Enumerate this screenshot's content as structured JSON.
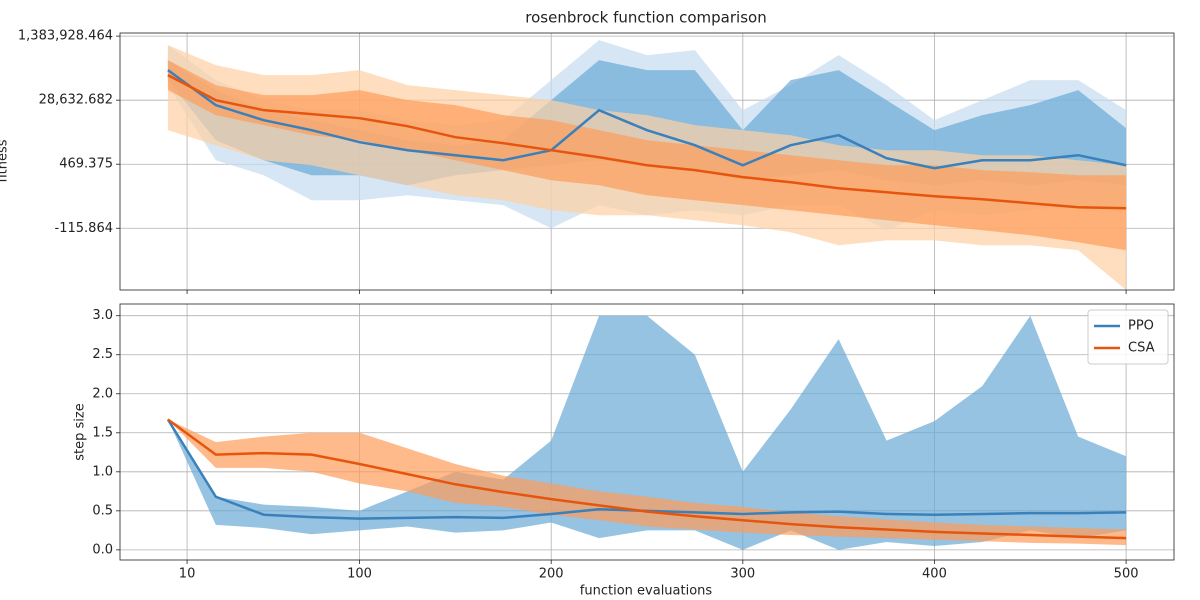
{
  "chart_data": [
    {
      "type": "line",
      "title": "rosenbrock function comparison",
      "ylabel": "fitness",
      "yscale": "tick-interpolated",
      "grid": true,
      "show_xtick_labels": false,
      "x": [
        0,
        25,
        50,
        75,
        100,
        125,
        150,
        175,
        200,
        225,
        250,
        275,
        300,
        325,
        350,
        375,
        400,
        425,
        450,
        475,
        500
      ],
      "xlim": [
        -25,
        525
      ],
      "xticks": [
        10,
        100,
        200,
        300,
        400,
        500
      ],
      "ylim": [
        -680,
        1450000
      ],
      "yticks": [
        {
          "value": -115.864,
          "label": "-115.864"
        },
        {
          "value": 469.375,
          "label": "469.375"
        },
        {
          "value": 28632.682,
          "label": "28,632.682"
        },
        {
          "value": 1383928.464,
          "label": "1,383,928.464"
        }
      ],
      "series": [
        {
          "color": "#3a80ba",
          "values": [
            663910,
            26433,
            19833,
            15433,
            10153,
            6633,
            4433,
            2233,
            6633,
            24233,
            15433,
            8833,
            460,
            8833,
            13233,
            3113,
            433,
            2233,
            2233,
            4433,
            460
          ],
          "bands": [
            {
              "color": "#c6dbef",
              "lower": [
                346255,
                2233,
                369,
                140,
                140,
                186,
                140,
                95,
                -116,
                95,
                3,
                49,
                3,
                95,
                95,
                -134,
                49,
                3,
                49,
                95,
                49
              ],
              "upper": [
                1193335,
                452140,
                28633,
                24233,
                24233,
                19833,
                17633,
                19833,
                452140,
                1299220,
                981565,
                1087450,
                24233,
                346255,
                981565,
                346255,
                19833,
                28633,
                452140,
                452140,
                24233
              ]
            },
            {
              "color": "#6aaad6",
              "lower": [
                452140,
                11033,
                2233,
                369,
                369,
                277,
                369,
                415,
                460,
                2233,
                460,
                415,
                323,
                369,
                415,
                323,
                277,
                323,
                277,
                323,
                277
              ],
              "upper": [
                875680,
                240370,
                24233,
                19833,
                15433,
                11033,
                8833,
                11033,
                28633,
                875680,
                663910,
                663910,
                15433,
                452140,
                663910,
                28633,
                15433,
                22033,
                26433,
                240370,
                16313
              ]
            }
          ]
        },
        {
          "color": "#e6550d",
          "values": [
            558025,
            28633,
            24233,
            22473,
            20713,
            17193,
            12353,
            9713,
            6633,
            3553,
            460,
            415,
            351,
            305,
            250,
            213,
            177,
            149,
            113,
            76,
            67
          ],
          "bands": [
            {
              "color": "#fdd0a2",
              "lower": [
                15433,
                8833,
                2233,
                460,
                369,
                277,
                186,
                140,
                49,
                3,
                3,
                -43,
                -88,
                -152,
                -271,
                -226,
                -226,
                -271,
                -271,
                -317,
                -680
              ],
              "upper": [
                1193335,
                769795,
                558025,
                558025,
                663910,
                346255,
                240370,
                134485,
                28633,
                24233,
                22033,
                17633,
                15433,
                13233,
                8833,
                6633,
                6633,
                4433,
                4433,
                2233,
                460
              ]
            },
            {
              "color": "#fd9d5a",
              "lower": [
                240370,
                22033,
                17633,
                13233,
                11033,
                6633,
                2233,
                415,
                323,
                277,
                186,
                140,
                95,
                49,
                3,
                -43,
                -88,
                -134,
                -180,
                -244,
                -317
              ],
              "upper": [
                875680,
                346255,
                134485,
                134485,
                240370,
                28633,
                26433,
                22033,
                19833,
                15433,
                11033,
                8833,
                6633,
                4433,
                2233,
                460,
                460,
                415,
                396,
                369,
                369
              ]
            }
          ]
        }
      ]
    },
    {
      "type": "line",
      "xlabel": "function evaluations",
      "ylabel": "step size",
      "grid": true,
      "legend": "upper right",
      "show_xtick_labels": true,
      "x": [
        0,
        25,
        50,
        75,
        100,
        125,
        150,
        175,
        200,
        225,
        250,
        275,
        300,
        325,
        350,
        375,
        400,
        425,
        450,
        475,
        500
      ],
      "xlim": [
        -25,
        525
      ],
      "xticks": [
        10,
        100,
        200,
        300,
        400,
        500
      ],
      "ylim": [
        -0.13,
        3.15
      ],
      "yticks": [
        {
          "value": 0,
          "label": "0.0"
        },
        0.5,
        {
          "value": 1,
          "label": "1.0"
        },
        1.5,
        {
          "value": 2,
          "label": "2.0"
        },
        2.5,
        {
          "value": 3,
          "label": "3.0"
        }
      ],
      "series": [
        {
          "name": "PPO",
          "color": "#3a80ba",
          "values": [
            1.67,
            0.68,
            0.45,
            0.42,
            0.4,
            0.41,
            0.42,
            0.41,
            0.46,
            0.52,
            0.5,
            0.48,
            0.46,
            0.48,
            0.49,
            0.46,
            0.45,
            0.46,
            0.47,
            0.47,
            0.48
          ],
          "bands": [
            {
              "color": "#6aaad6",
              "lower": [
                1.67,
                0.32,
                0.28,
                0.2,
                0.25,
                0.3,
                0.22,
                0.25,
                0.35,
                0.15,
                0.25,
                0.25,
                0.0,
                0.25,
                0.0,
                0.1,
                0.05,
                0.1,
                0.25,
                0.15,
                0.25
              ],
              "upper": [
                1.67,
                0.68,
                0.58,
                0.55,
                0.5,
                0.75,
                1.0,
                0.9,
                1.4,
                3.0,
                3.0,
                2.5,
                1.0,
                1.8,
                2.7,
                1.4,
                1.65,
                2.1,
                3.0,
                1.45,
                1.2
              ]
            }
          ]
        },
        {
          "name": "CSA",
          "color": "#e6550d",
          "values": [
            1.67,
            1.22,
            1.24,
            1.22,
            1.1,
            0.97,
            0.84,
            0.74,
            0.65,
            0.57,
            0.49,
            0.43,
            0.38,
            0.33,
            0.29,
            0.26,
            0.23,
            0.21,
            0.19,
            0.17,
            0.15
          ],
          "bands": [
            {
              "color": "#fd9d5a",
              "lower": [
                1.67,
                1.05,
                1.05,
                1.0,
                0.85,
                0.75,
                0.6,
                0.55,
                0.45,
                0.38,
                0.3,
                0.26,
                0.22,
                0.19,
                0.17,
                0.15,
                0.13,
                0.11,
                0.09,
                0.08,
                0.06
              ],
              "upper": [
                1.67,
                1.38,
                1.45,
                1.5,
                1.5,
                1.3,
                1.1,
                0.95,
                0.85,
                0.75,
                0.68,
                0.6,
                0.55,
                0.48,
                0.43,
                0.39,
                0.35,
                0.32,
                0.3,
                0.28,
                0.26
              ]
            }
          ]
        }
      ]
    }
  ]
}
